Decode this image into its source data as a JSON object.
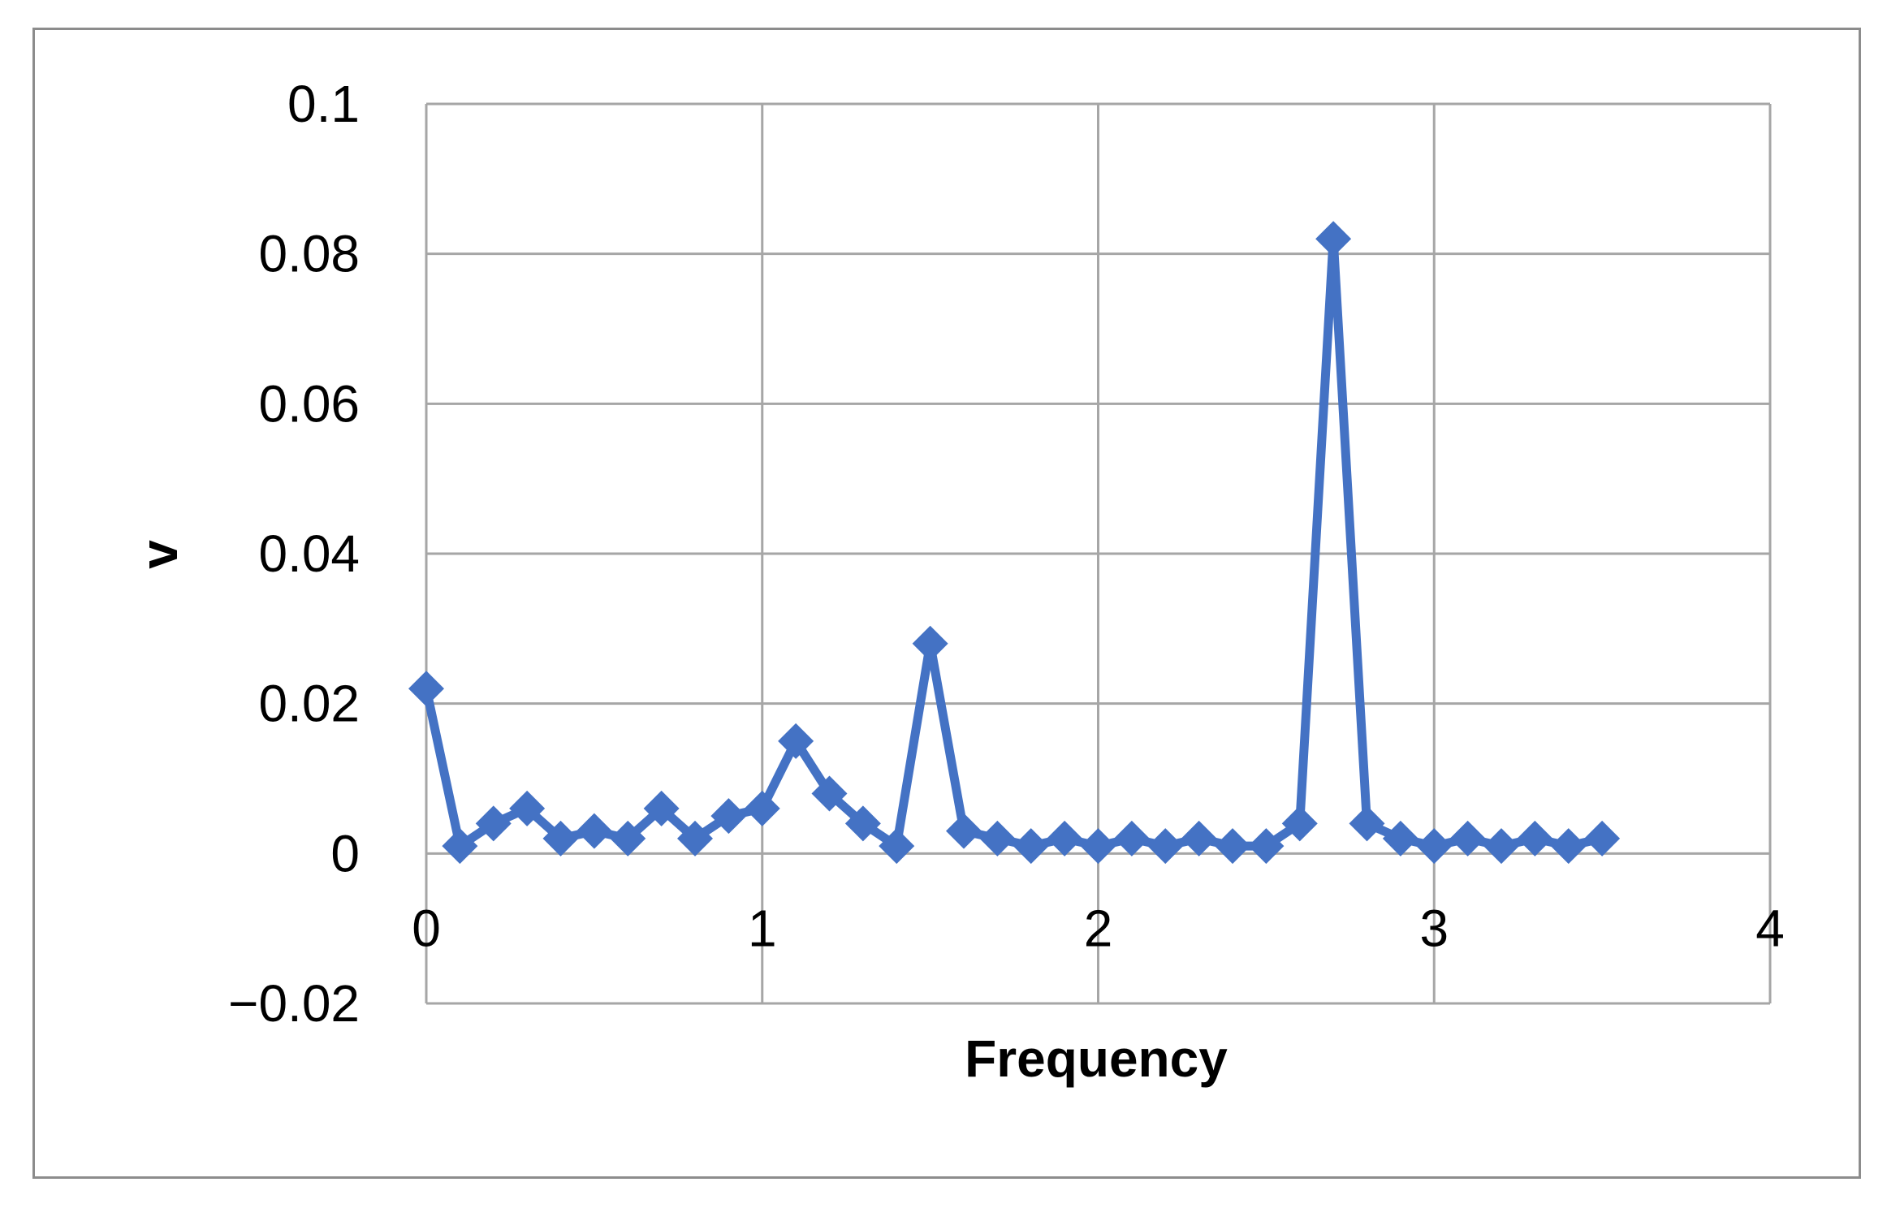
{
  "chart_data": {
    "type": "line",
    "title": "",
    "xlabel": "Frequency",
    "ylabel": "v",
    "xlim": [
      0,
      4
    ],
    "ylim": [
      -0.02,
      0.1
    ],
    "xticks": [
      "0",
      "1",
      "2",
      "3",
      "4"
    ],
    "yticks": [
      "0.1",
      "0.08",
      "0.06",
      "0.04",
      "0.02",
      "0",
      "−0.02"
    ],
    "grid": true,
    "legend": "none",
    "marker": "diamond",
    "color": "#4472C4",
    "series": [
      {
        "x": [
          0.0,
          0.1,
          0.2,
          0.3,
          0.4,
          0.5,
          0.6,
          0.7,
          0.8,
          0.9,
          1.0,
          1.1,
          1.2,
          1.3,
          1.4,
          1.5,
          1.6,
          1.7,
          1.8,
          1.9,
          2.0,
          2.1,
          2.2,
          2.3,
          2.4,
          2.5,
          2.6,
          2.7,
          2.8,
          2.9,
          3.0,
          3.1,
          3.2,
          3.3,
          3.4,
          3.5
        ],
        "values": [
          0.022,
          0.001,
          0.004,
          0.006,
          0.002,
          0.003,
          0.002,
          0.006,
          0.002,
          0.005,
          0.006,
          0.015,
          0.008,
          0.004,
          0.001,
          0.028,
          0.003,
          0.002,
          0.001,
          0.002,
          0.001,
          0.002,
          0.001,
          0.002,
          0.001,
          0.001,
          0.004,
          0.082,
          0.004,
          0.002,
          0.001,
          0.002,
          0.001,
          0.002,
          0.001,
          0.002
        ]
      }
    ]
  }
}
